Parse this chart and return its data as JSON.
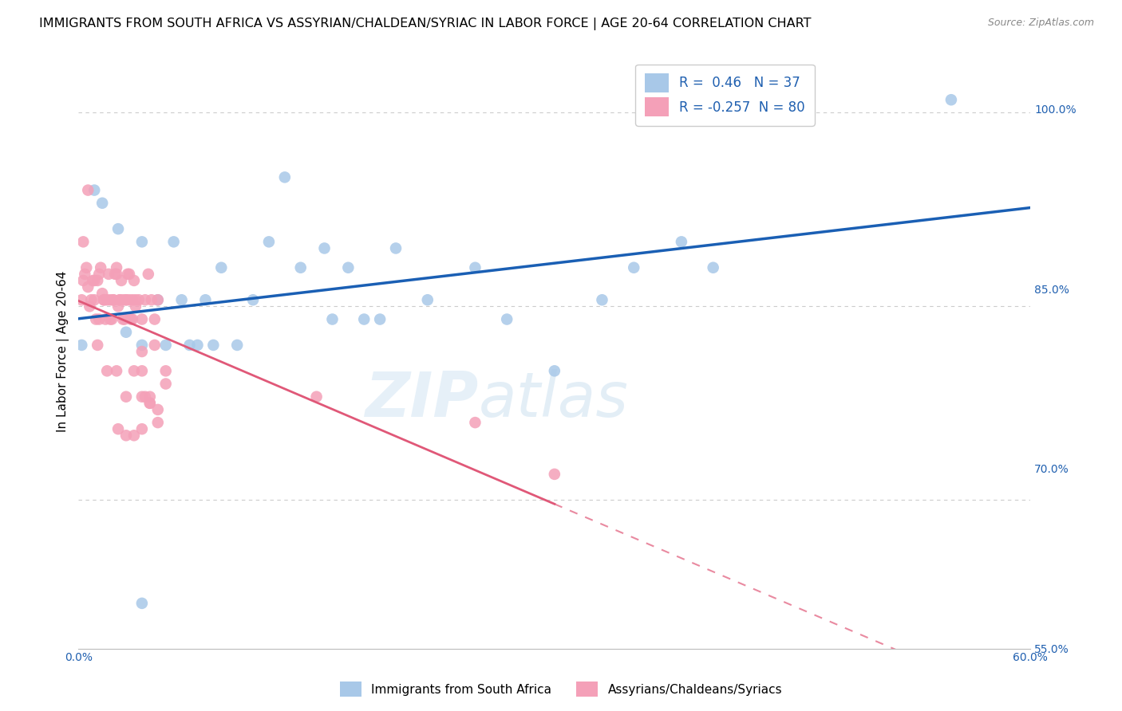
{
  "title": "IMMIGRANTS FROM SOUTH AFRICA VS ASSYRIAN/CHALDEAN/SYRIAC IN LABOR FORCE | AGE 20-64 CORRELATION CHART",
  "source": "Source: ZipAtlas.com",
  "ylabel": "In Labor Force | Age 20-64",
  "xlim": [
    0.0,
    0.6
  ],
  "ylim": [
    0.585,
    1.045
  ],
  "blue_R": 0.46,
  "blue_N": 37,
  "pink_R": -0.257,
  "pink_N": 80,
  "blue_color": "#a8c8e8",
  "blue_line_color": "#1a5fb4",
  "pink_color": "#f4a0b8",
  "pink_line_color": "#e05878",
  "blue_scatter_x": [
    0.002,
    0.01,
    0.015,
    0.025,
    0.03,
    0.04,
    0.04,
    0.05,
    0.055,
    0.06,
    0.065,
    0.07,
    0.075,
    0.08,
    0.085,
    0.09,
    0.1,
    0.11,
    0.12,
    0.13,
    0.14,
    0.155,
    0.16,
    0.17,
    0.18,
    0.19,
    0.2,
    0.22,
    0.25,
    0.27,
    0.3,
    0.33,
    0.35,
    0.38,
    0.4,
    0.55,
    0.04
  ],
  "blue_scatter_y": [
    0.82,
    0.94,
    0.93,
    0.91,
    0.83,
    0.9,
    0.82,
    0.855,
    0.82,
    0.9,
    0.855,
    0.82,
    0.82,
    0.855,
    0.82,
    0.88,
    0.82,
    0.855,
    0.9,
    0.95,
    0.88,
    0.895,
    0.84,
    0.88,
    0.84,
    0.84,
    0.895,
    0.855,
    0.88,
    0.84,
    0.8,
    0.855,
    0.88,
    0.9,
    0.88,
    1.01,
    0.62
  ],
  "pink_scatter_x": [
    0.002,
    0.003,
    0.004,
    0.005,
    0.006,
    0.007,
    0.008,
    0.009,
    0.01,
    0.011,
    0.012,
    0.013,
    0.014,
    0.015,
    0.016,
    0.017,
    0.018,
    0.019,
    0.02,
    0.021,
    0.022,
    0.023,
    0.024,
    0.025,
    0.026,
    0.027,
    0.028,
    0.029,
    0.03,
    0.031,
    0.032,
    0.033,
    0.034,
    0.035,
    0.036,
    0.038,
    0.04,
    0.042,
    0.044,
    0.046,
    0.048,
    0.05,
    0.003,
    0.006,
    0.01,
    0.013,
    0.016,
    0.02,
    0.022,
    0.024,
    0.026,
    0.028,
    0.03,
    0.032,
    0.034,
    0.036,
    0.04,
    0.042,
    0.045,
    0.048,
    0.012,
    0.018,
    0.024,
    0.03,
    0.035,
    0.04,
    0.045,
    0.05,
    0.025,
    0.03,
    0.035,
    0.04,
    0.04,
    0.045,
    0.05,
    0.055,
    0.055,
    0.15,
    0.25,
    0.3
  ],
  "pink_scatter_y": [
    0.855,
    0.87,
    0.875,
    0.88,
    0.865,
    0.85,
    0.855,
    0.87,
    0.855,
    0.84,
    0.87,
    0.875,
    0.88,
    0.86,
    0.855,
    0.84,
    0.855,
    0.875,
    0.855,
    0.84,
    0.855,
    0.875,
    0.88,
    0.85,
    0.855,
    0.87,
    0.855,
    0.84,
    0.855,
    0.875,
    0.855,
    0.84,
    0.855,
    0.87,
    0.85,
    0.855,
    0.84,
    0.855,
    0.875,
    0.855,
    0.84,
    0.855,
    0.9,
    0.94,
    0.87,
    0.84,
    0.855,
    0.84,
    0.855,
    0.875,
    0.855,
    0.84,
    0.855,
    0.875,
    0.84,
    0.855,
    0.815,
    0.78,
    0.78,
    0.82,
    0.82,
    0.8,
    0.8,
    0.78,
    0.8,
    0.78,
    0.775,
    0.77,
    0.755,
    0.75,
    0.75,
    0.755,
    0.8,
    0.775,
    0.76,
    0.8,
    0.79,
    0.78,
    0.76,
    0.72
  ],
  "watermark_text": "ZIPatlas",
  "legend_label_blue": "Immigrants from South Africa",
  "legend_label_pink": "Assyrians/Chaldeans/Syriacs",
  "title_fontsize": 11.5,
  "axis_label_fontsize": 11,
  "tick_fontsize": 10,
  "blue_line_endpoints": [
    0.0,
    0.6
  ],
  "pink_line_solid_end": 0.3,
  "pink_line_endpoints": [
    0.0,
    0.6
  ]
}
